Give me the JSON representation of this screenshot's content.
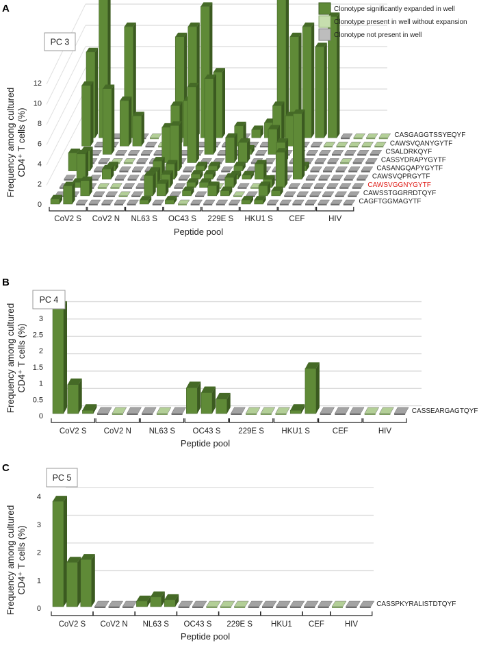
{
  "legend": {
    "expanded": "Clonotype significantly expanded in well",
    "present": "Clonotype present in well without expansion",
    "absent": "Clonotype not present in well"
  },
  "colors": {
    "expanded_front": "#5f8a37",
    "expanded_top": "#456a26",
    "expanded_side": "#3b5a20",
    "present": "#b3cf97",
    "absent": "#a3a3a3",
    "highlight_label": "#e0201b"
  },
  "chart_data": [
    {
      "type": "bar",
      "panel_letter": "A",
      "box_label": "PC 3",
      "ylabel_lines": [
        "Frequency among cultured",
        "CD4⁺ T cells (%)"
      ],
      "xlabel": "Peptide pool",
      "yticks": [
        "0",
        "2",
        "4",
        "6",
        "8",
        "10",
        "12"
      ],
      "ylim": [
        0,
        14
      ],
      "groups": [
        {
          "label": "CoV2 S",
          "wells": 3
        },
        {
          "label": "CoV2 N",
          "wells": 3
        },
        {
          "label": "NL63 S",
          "wells": 3
        },
        {
          "label": "OC43 S",
          "wells": 3
        },
        {
          "label": "229E S",
          "wells": 3
        },
        {
          "label": "HKU1 S",
          "wells": 3
        },
        {
          "label": "CEF",
          "wells": 3
        },
        {
          "label": "HIV",
          "wells": 3
        }
      ],
      "status_key": "E = expanded, P = present without expansion, N = not present",
      "series": [
        {
          "name": "CAGFTGGMAGYTF",
          "status": "EENNNNNENEPNNNNEENNNNNNN",
          "values": [
            0.5,
            1.8,
            0,
            0,
            0,
            0,
            0,
            0.4,
            0,
            0.4,
            0,
            0,
            0,
            0,
            0,
            0.4,
            0.4,
            0,
            0,
            0,
            0,
            0,
            0,
            0
          ]
        },
        {
          "name": "CAWSSTGGRRDTQYF",
          "status": "NNENNPNEENENEEPNEENNNNNN",
          "values": [
            0,
            0,
            1.5,
            0,
            0,
            0,
            0,
            2,
            1.2,
            0,
            0.5,
            0,
            1,
            0.5,
            0,
            0,
            1,
            0.5,
            0,
            0,
            0,
            0,
            0,
            0
          ]
        },
        {
          "name": "CAWSVGGNYGYTF",
          "highlight": true,
          "status": "NENPPNNEENEEPENPEENNNNNN",
          "values": [
            0,
            0.5,
            0,
            0,
            0,
            0,
            0,
            1.6,
            1.3,
            0,
            0.5,
            0.5,
            0,
            1,
            0,
            0,
            0.8,
            3.5,
            0,
            0,
            0,
            0,
            0,
            0
          ]
        },
        {
          "name": "CAWSVQPRGYTF",
          "status": "NENENNNEENEENEEENNENNNNN",
          "values": [
            0,
            2.5,
            0,
            1,
            0,
            0,
            0,
            1.8,
            1.5,
            0,
            0.5,
            0.5,
            0,
            0.4,
            0.4,
            1.5,
            0,
            0,
            6.5,
            0,
            0,
            0,
            0,
            0
          ]
        },
        {
          "name": "CASANGQAPYGYTF",
          "status": "EENENNNNENEENENNNNENNNNN",
          "values": [
            1.8,
            2,
            0,
            0.5,
            0,
            0,
            0,
            0,
            4.5,
            0,
            0.5,
            0.5,
            0,
            0.5,
            0,
            0,
            0,
            0,
            0.5,
            0,
            0,
            0,
            0,
            0
          ]
        },
        {
          "name": "CASSYDRAPYGYTF",
          "status": "NNNPPNNENENNEENNENNNNPNN",
          "values": [
            0,
            0,
            0,
            0,
            0,
            0,
            0,
            3.5,
            0,
            7.5,
            0,
            0,
            2.5,
            2,
            0,
            0,
            2,
            0,
            0,
            0,
            0,
            0,
            0,
            0
          ]
        },
        {
          "name": "CSALDRKQYF",
          "status": "NNENNNNNNNENNENENNNNNNNN",
          "values": [
            0,
            0,
            6.5,
            0,
            0,
            0,
            0,
            0,
            0,
            0,
            7.5,
            0,
            0,
            0.5,
            0,
            2.5,
            0,
            0,
            0,
            0,
            0,
            0,
            0,
            0
          ]
        },
        {
          "name": "CAWSVQANYGYTF",
          "status": "ENNEENPEENNNENNEENNPPPPP",
          "values": [
            6,
            0,
            0,
            4.5,
            3,
            0,
            0,
            4,
            4.5,
            0,
            0,
            0,
            2,
            0,
            0,
            4,
            3,
            0,
            0,
            0,
            0,
            0,
            0,
            0
          ]
        },
        {
          "name": "CASGAGGTSSYEQYF",
          "status": "EENENPNEEEENNEEEEEEENPPP",
          "values": [
            8.5,
            15,
            0,
            11,
            0,
            0,
            0,
            10,
            11,
            13,
            6.5,
            0,
            0,
            0.8,
            1.5,
            14,
            10,
            11,
            9,
            12,
            0,
            0,
            0,
            0
          ]
        }
      ]
    },
    {
      "type": "bar",
      "panel_letter": "B",
      "box_label": "PC 4",
      "ylabel_lines": [
        "Frequency among cultured",
        "CD4⁺ T cells (%)"
      ],
      "xlabel": "Peptide pool",
      "yticks": [
        "0",
        "0.5",
        "1",
        "1.5",
        "2",
        "2.5",
        "3",
        "3.5"
      ],
      "ylim": [
        0,
        3.5
      ],
      "groups": [
        {
          "label": "CoV2 S",
          "wells": 3
        },
        {
          "label": "CoV2 N",
          "wells": 3
        },
        {
          "label": "NL63 S",
          "wells": 3
        },
        {
          "label": "OC43 S",
          "wells": 3
        },
        {
          "label": "229E S",
          "wells": 3
        },
        {
          "label": "HKU1 S",
          "wells": 3
        },
        {
          "label": "CEF",
          "wells": 3
        },
        {
          "label": "HIV",
          "wells": 3
        }
      ],
      "series": [
        {
          "name": "CASSEARGAGTQYF",
          "status": "EEENPNNPNEEENPPPEENNNPPN",
          "values": [
            3.3,
            0.9,
            0.1,
            0,
            0,
            0,
            0,
            0,
            0,
            0.8,
            0.65,
            0.45,
            0,
            0,
            0,
            0,
            0.1,
            1.4,
            0,
            0,
            0,
            0,
            0,
            0
          ]
        }
      ]
    },
    {
      "type": "bar",
      "panel_letter": "C",
      "box_label": "PC 5",
      "ylabel_lines": [
        "Frequency among cultured",
        "CD4⁺ T cells (%)"
      ],
      "xlabel": "Peptide pool",
      "yticks": [
        "0",
        "1",
        "2",
        "3",
        "4"
      ],
      "ylim": [
        0,
        4
      ],
      "groups": [
        {
          "label": "CoV2 S",
          "wells": 3
        },
        {
          "label": "CoV2 N",
          "wells": 3
        },
        {
          "label": "NL63 S",
          "wells": 3
        },
        {
          "label": "OC43 S",
          "wells": 3
        },
        {
          "label": "229E S",
          "wells": 3
        },
        {
          "label": "HKU1",
          "wells": 3
        },
        {
          "label": "CEF",
          "wells": 2
        },
        {
          "label": "HIV",
          "wells": 3
        }
      ],
      "series": [
        {
          "name": "CASSPKYRALISTDTQYF",
          "status": "EEENNNEEENNPPPNNNNNNPNN",
          "values": [
            3.8,
            1.6,
            1.7,
            0,
            0,
            0,
            0.2,
            0.35,
            0.25,
            0,
            0,
            0,
            0,
            0,
            0,
            0,
            0,
            0,
            0,
            0,
            0,
            0,
            0
          ]
        }
      ]
    }
  ]
}
